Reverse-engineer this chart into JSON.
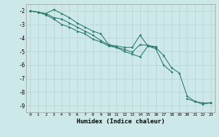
{
  "xlabel": "Humidex (Indice chaleur)",
  "background_color": "#cce8e8",
  "grid_color": "#b8d4d4",
  "line_color": "#2a7a6a",
  "x_all": [
    0,
    1,
    2,
    3,
    4,
    5,
    6,
    7,
    8,
    9,
    10,
    11,
    12,
    13,
    14,
    15,
    16,
    17,
    18,
    19,
    20,
    21,
    22,
    23
  ],
  "line1": [
    -2.0,
    -2.1,
    -2.2,
    -1.9,
    -2.2,
    -2.5,
    -2.9,
    -3.2,
    -3.5,
    -3.7,
    -4.5,
    -4.6,
    -4.7,
    -4.7,
    -3.8,
    -4.6,
    -4.7,
    -5.3,
    -6.2,
    -6.6,
    -8.3,
    -8.7,
    -8.8,
    -8.8
  ],
  "line2": [
    -2.0,
    -2.1,
    -2.2,
    -2.5,
    -2.6,
    -2.9,
    -3.2,
    -3.5,
    -3.8,
    -4.2,
    -4.5,
    -4.7,
    -5.0,
    -5.2,
    -5.4,
    -4.6,
    -4.8,
    -6.0,
    -6.5,
    null,
    -8.5,
    -8.7,
    -8.9,
    -8.8
  ],
  "line3": [
    -2.0,
    -2.1,
    -2.3,
    -2.6,
    -3.0,
    -3.2,
    -3.5,
    -3.7,
    -4.1,
    -4.3,
    -4.6,
    -4.7,
    -4.85,
    -5.05,
    -4.5,
    -4.55,
    -4.65,
    null,
    null,
    null,
    null,
    null,
    null,
    null
  ],
  "ylim": [
    -9.5,
    -1.5
  ],
  "xlim": [
    -0.5,
    23.5
  ],
  "yticks": [
    -9,
    -8,
    -7,
    -6,
    -5,
    -4,
    -3,
    -2
  ],
  "xticks": [
    0,
    1,
    2,
    3,
    4,
    5,
    6,
    7,
    8,
    9,
    10,
    11,
    12,
    13,
    14,
    15,
    16,
    17,
    18,
    19,
    20,
    21,
    22,
    23
  ],
  "xtick_labels": [
    "0",
    "1",
    "2",
    "3",
    "4",
    "5",
    "6",
    "7",
    "8",
    "9",
    "10",
    "11",
    "12",
    "13",
    "14",
    "15",
    "16",
    "17",
    "18",
    "19",
    "20",
    "21",
    "22",
    "23"
  ]
}
